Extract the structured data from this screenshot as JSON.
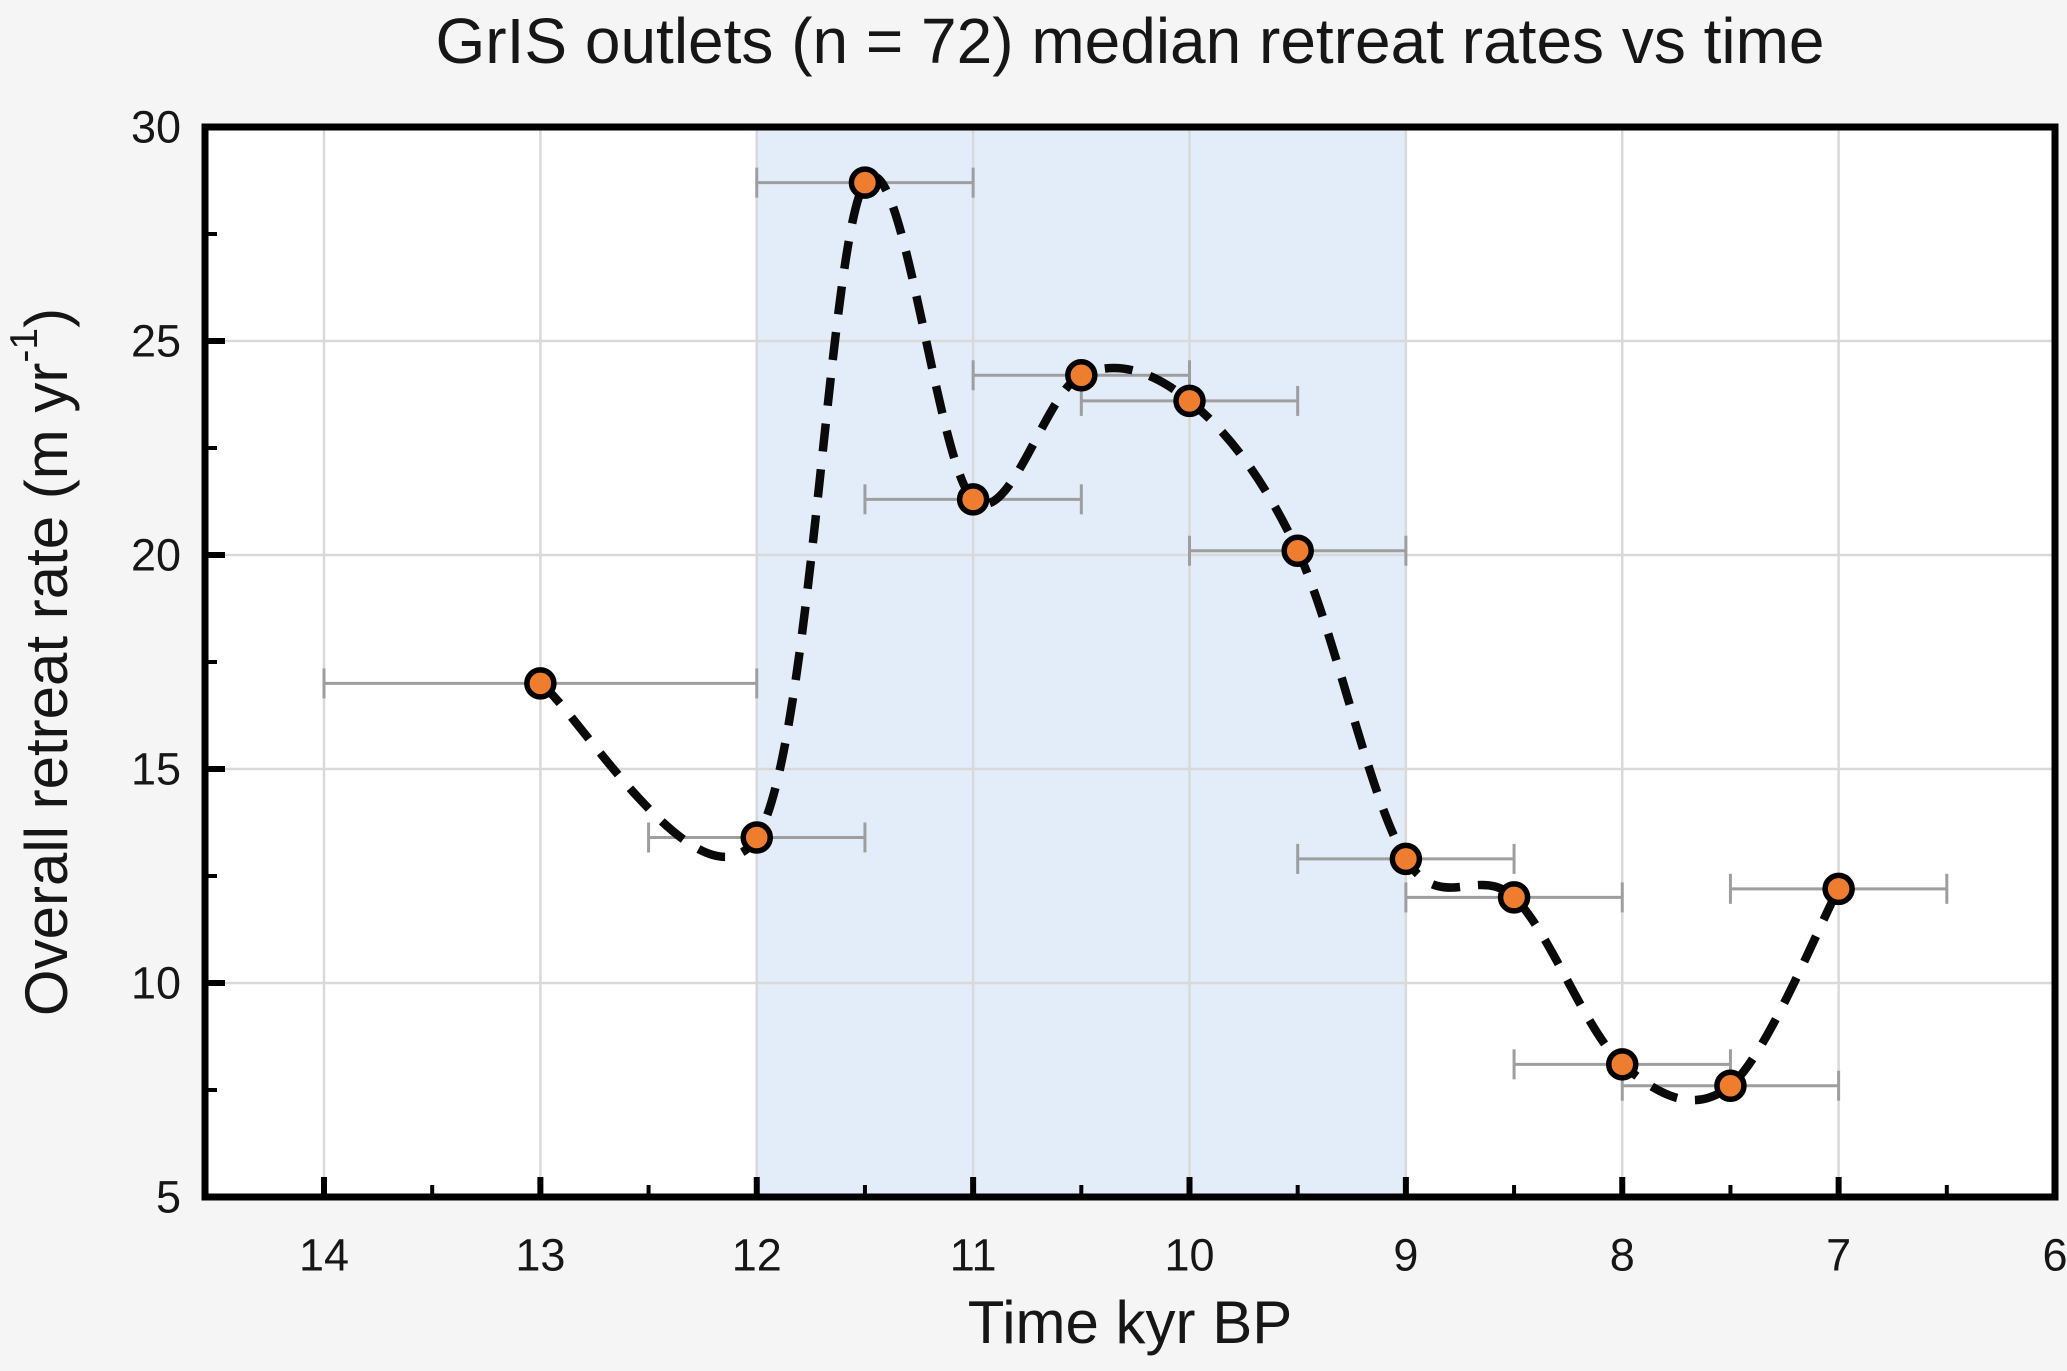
{
  "chart_data": {
    "type": "scatter",
    "title": "GrIS outlets (n = 72) median retreat rates vs time",
    "xlabel": "Time kyr BP",
    "ylabel": "Overall retreat rate (m yr⁻¹)",
    "ylabel_parts": {
      "main": "Overall retreat rate (m yr",
      "sup": "-1",
      "post": ")"
    },
    "x_axis": {
      "range": [
        14.55,
        6
      ],
      "reversed": true,
      "major_ticks": [
        14,
        13,
        12,
        11,
        10,
        9,
        8,
        7,
        6
      ],
      "tick_labels": [
        "14",
        "13",
        "12",
        "11",
        "10",
        "9",
        "8",
        "7",
        "6"
      ],
      "minor_ticks": [
        13.5,
        12.5,
        11.5,
        10.5,
        9.5,
        8.5,
        7.5,
        6.5
      ]
    },
    "y_axis": {
      "range": [
        5,
        30
      ],
      "major_ticks": [
        5,
        10,
        15,
        20,
        25,
        30
      ],
      "tick_labels": [
        "5",
        "10",
        "15",
        "20",
        "25",
        "30"
      ],
      "minor_ticks": [
        7.5,
        12.5,
        17.5,
        22.5,
        27.5
      ]
    },
    "grid": {
      "vertical_at": [
        14,
        13,
        12,
        11,
        10,
        9,
        8,
        7
      ],
      "horizontal_at": [
        10,
        15,
        20,
        25
      ]
    },
    "shaded_band": {
      "x_from": 12,
      "x_to": 9
    },
    "series": [
      {
        "name": "median retreat rate",
        "line_style": "dashed-spline",
        "marker": "circle",
        "points": [
          {
            "x": 13.0,
            "y": 17.0,
            "xerr": 1.0
          },
          {
            "x": 12.0,
            "y": 13.4,
            "xerr": 0.5
          },
          {
            "x": 11.5,
            "y": 28.7,
            "xerr": 0.5
          },
          {
            "x": 11.0,
            "y": 21.3,
            "xerr": 0.5
          },
          {
            "x": 10.5,
            "y": 24.2,
            "xerr": 0.5
          },
          {
            "x": 10.0,
            "y": 23.6,
            "xerr": 0.5
          },
          {
            "x": 9.5,
            "y": 20.1,
            "xerr": 0.5
          },
          {
            "x": 9.0,
            "y": 12.9,
            "xerr": 0.5
          },
          {
            "x": 8.5,
            "y": 12.0,
            "xerr": 0.5
          },
          {
            "x": 8.0,
            "y": 8.1,
            "xerr": 0.5
          },
          {
            "x": 7.5,
            "y": 7.6,
            "xerr": 0.5
          },
          {
            "x": 7.0,
            "y": 12.2,
            "xerr": 0.5
          }
        ]
      }
    ],
    "colors": {
      "background": "#F5F5F5",
      "plot_background": "#FFFFFF",
      "band": "#E2EDF9",
      "grid": "#D9D9D9",
      "axis": "#000000",
      "text": "#161616",
      "marker_fill": "#EE7D2F",
      "marker_stroke": "#000000",
      "error_bar": "#9E9E9E",
      "trend_line": "#0A0A0A"
    },
    "legend": null
  }
}
